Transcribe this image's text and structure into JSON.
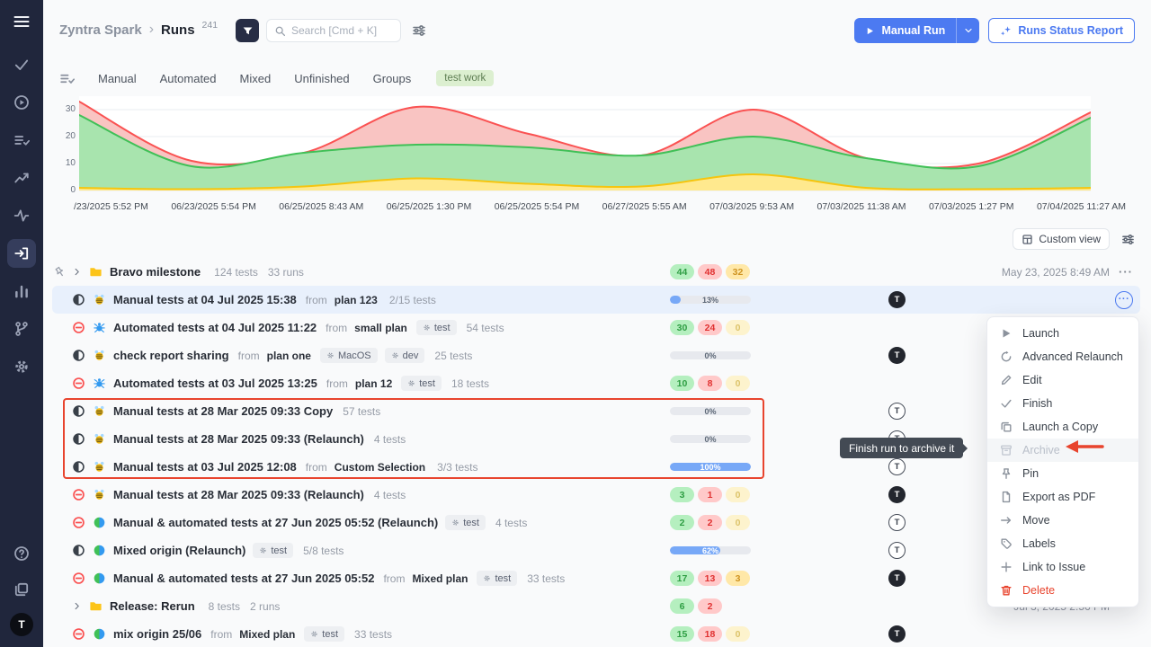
{
  "labels": {
    "from": "from",
    "avatar_letter": "T",
    "more": "···",
    "separator": "›"
  },
  "colors": {
    "accent_blue": "#4c7af1",
    "sidebar_bg": "#20263c",
    "annotation_red": "#e8442e",
    "badge_green": "#b5efbf",
    "badge_red": "#ffc9c9",
    "badge_yellow": "#ffe8a8",
    "progress_blue": "#77a8f7"
  },
  "sidebar": {
    "menu_icon": "menu",
    "nav": [
      {
        "icon": "check"
      },
      {
        "icon": "play-circle"
      },
      {
        "icon": "list-check"
      },
      {
        "icon": "trend"
      },
      {
        "icon": "activity"
      },
      {
        "icon": "sign-in",
        "active": true
      },
      {
        "icon": "bar-chart"
      },
      {
        "icon": "branch"
      },
      {
        "icon": "gear"
      }
    ],
    "bottom": [
      {
        "icon": "help"
      },
      {
        "icon": "stack"
      }
    ],
    "avatar": "T"
  },
  "header": {
    "app": "Zyntra Spark",
    "page": "Runs",
    "count": "241",
    "search_placeholder": "Search [Cmd + K]",
    "manual_run": "Manual Run",
    "runs_status_report": "Runs Status Report"
  },
  "tabs": {
    "items": [
      "Manual",
      "Automated",
      "Mixed",
      "Unfinished",
      "Groups"
    ],
    "tag": "test work"
  },
  "chart_data": {
    "type": "area",
    "title": "",
    "xlabel": "",
    "ylabel": "",
    "grid": true,
    "legend": false,
    "ylim": [
      0,
      35
    ],
    "yticks": [
      0,
      10,
      20,
      30
    ],
    "x": [
      "/23/2025 5:52 PM",
      "06/23/2025 5:54 PM",
      "06/25/2025 8:43 AM",
      "06/25/2025 1:30 PM",
      "06/25/2025 5:54 PM",
      "06/27/2025 5:55 AM",
      "07/03/2025 9:53 AM",
      "07/03/2025 11:38 AM",
      "07/03/2025 1:27 PM",
      "07/04/2025 11:27 AM"
    ],
    "series": [
      {
        "name": "red",
        "color": "#fa5252",
        "fill": "#f9c4c2",
        "values": [
          33,
          11,
          14,
          31,
          21,
          13,
          30,
          12,
          10,
          29
        ]
      },
      {
        "name": "green",
        "color": "#40c057",
        "fill": "#a8e4ae",
        "values": [
          28,
          9,
          14,
          17,
          16,
          13,
          20,
          12,
          9,
          27
        ]
      },
      {
        "name": "yellow",
        "color": "#f5c50f",
        "fill": "#ffe98e",
        "values": [
          1,
          0.5,
          1.5,
          4.5,
          2.5,
          1.5,
          6,
          1,
          0.5,
          1
        ]
      }
    ]
  },
  "viewbar": {
    "custom_view": "Custom view"
  },
  "runs": [
    {
      "kind": "group",
      "pinned": true,
      "title": "Bravo milestone",
      "meta": [
        "124 tests",
        "33 runs"
      ],
      "badges": [
        {
          "v": "44",
          "c": "green"
        },
        {
          "v": "48",
          "c": "red"
        },
        {
          "v": "32",
          "c": "yellow"
        }
      ],
      "date": "May 23, 2025 8:49 AM",
      "more": true
    },
    {
      "kind": "run",
      "selected": true,
      "status": "progress",
      "origin": "manual",
      "title": "Manual tests at 04 Jul 2025 15:38",
      "from": "plan 123",
      "tests": "2/15 tests",
      "progress": "13%",
      "avatar": "filled",
      "more": true,
      "more_active": true
    },
    {
      "kind": "run",
      "status": "stopped",
      "origin": "automated",
      "title": "Automated tests at 04 Jul 2025 11:22",
      "from": "small plan",
      "tags": [
        "test"
      ],
      "tests": "54 tests",
      "badges": [
        {
          "v": "30",
          "c": "green"
        },
        {
          "v": "24",
          "c": "red"
        },
        {
          "v": "0",
          "c": "yellow"
        }
      ]
    },
    {
      "kind": "run",
      "status": "progress",
      "origin": "manual",
      "title": "check report sharing",
      "from": "plan one",
      "tags": [
        "MacOS",
        "dev"
      ],
      "tests": "25 tests",
      "progress": "0%",
      "avatar": "filled"
    },
    {
      "kind": "run",
      "status": "stopped",
      "origin": "automated",
      "title": "Automated tests at 03 Jul 2025 13:25",
      "from": "plan 12",
      "tags": [
        "test"
      ],
      "tests": "18 tests",
      "badges": [
        {
          "v": "10",
          "c": "green"
        },
        {
          "v": "8",
          "c": "red"
        },
        {
          "v": "0",
          "c": "yellow"
        }
      ]
    },
    {
      "kind": "run",
      "status": "progress",
      "origin": "manual",
      "title": "Manual tests at 28 Mar 2025 09:33 Copy",
      "tests": "57 tests",
      "progress": "0%",
      "avatar": "outline"
    },
    {
      "kind": "run",
      "status": "progress",
      "origin": "manual",
      "title": "Manual tests at 28 Mar 2025 09:33 (Relaunch)",
      "tests": "4 tests",
      "progress": "0%",
      "avatar": "outline"
    },
    {
      "kind": "run",
      "status": "progress",
      "origin": "manual",
      "title": "Manual tests at 03 Jul 2025 12:08",
      "from": "Custom Selection",
      "tests": "3/3 tests",
      "progress": "100%",
      "avatar": "outline"
    },
    {
      "kind": "run",
      "status": "stopped",
      "origin": "manual",
      "title": "Manual tests at 28 Mar 2025 09:33 (Relaunch)",
      "tests": "4 tests",
      "badges": [
        {
          "v": "3",
          "c": "green"
        },
        {
          "v": "1",
          "c": "red"
        },
        {
          "v": "0",
          "c": "yellow"
        }
      ],
      "avatar": "filled"
    },
    {
      "kind": "run",
      "status": "stopped",
      "origin": "mixed",
      "title": "Manual & automated tests at 27 Jun 2025 05:52 (Relaunch)",
      "tags": [
        "test"
      ],
      "tests": "4 tests",
      "badges": [
        {
          "v": "2",
          "c": "green"
        },
        {
          "v": "2",
          "c": "red"
        },
        {
          "v": "0",
          "c": "yellow"
        }
      ],
      "avatar": "outline"
    },
    {
      "kind": "run",
      "status": "progress",
      "origin": "mixed",
      "title": "Mixed origin (Relaunch)",
      "tags": [
        "test"
      ],
      "tests": "5/8 tests",
      "progress": "62%",
      "avatar": "outline"
    },
    {
      "kind": "run",
      "status": "stopped",
      "origin": "mixed",
      "title": "Manual & automated tests at 27 Jun 2025 05:52",
      "from": "Mixed plan",
      "tags": [
        "test"
      ],
      "tests": "33 tests",
      "badges": [
        {
          "v": "17",
          "c": "green"
        },
        {
          "v": "13",
          "c": "red"
        },
        {
          "v": "3",
          "c": "yellow"
        }
      ],
      "avatar": "filled"
    },
    {
      "kind": "group",
      "title": "Release: Rerun",
      "meta": [
        "8 tests",
        "2 runs"
      ],
      "badges": [
        {
          "v": "6",
          "c": "green"
        },
        {
          "v": "2",
          "c": "red"
        }
      ],
      "date": "Jul 3, 2025 2:56 PM",
      "more": true
    },
    {
      "kind": "run",
      "status": "stopped",
      "origin": "mixed",
      "title": "mix origin 25/06",
      "from": "Mixed plan",
      "tags": [
        "test"
      ],
      "tests": "33 tests",
      "badges": [
        {
          "v": "15",
          "c": "green"
        },
        {
          "v": "18",
          "c": "red"
        },
        {
          "v": "0",
          "c": "yellow"
        }
      ],
      "avatar": "filled"
    }
  ],
  "context_menu": {
    "items": [
      {
        "icon": "play",
        "label": "Launch"
      },
      {
        "icon": "replay",
        "label": "Advanced Relaunch"
      },
      {
        "icon": "pencil",
        "label": "Edit"
      },
      {
        "icon": "check",
        "label": "Finish"
      },
      {
        "icon": "copy",
        "label": "Launch a Copy"
      },
      {
        "icon": "archive",
        "label": "Archive",
        "disabled": true
      },
      {
        "icon": "pin",
        "label": "Pin"
      },
      {
        "icon": "file",
        "label": "Export as PDF"
      },
      {
        "icon": "arrow-right",
        "label": "Move"
      },
      {
        "icon": "tag",
        "label": "Labels"
      },
      {
        "icon": "plus",
        "label": "Link to Issue"
      },
      {
        "icon": "trash",
        "label": "Delete",
        "danger": true
      }
    ]
  },
  "tooltip": {
    "text": "Finish run to archive it"
  }
}
